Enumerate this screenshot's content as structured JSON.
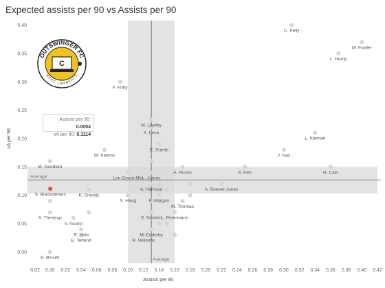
{
  "title": "Expected assists per 90 vs Assists per 90",
  "tooltip": {
    "ap_label": "Assists per 90:",
    "ap_value": "0.0004",
    "xa_label": "xA per 90:",
    "xa_value": "0.1114"
  },
  "logo": {
    "text": "OUTSWINGER FC",
    "subtext": "MARC LAMBERTS"
  },
  "colors": {
    "point": "#d5d5d5",
    "highlight": "#e0514a",
    "band": "#d9d9d9",
    "avg_line": "#555555"
  },
  "chart_data": {
    "type": "scatter",
    "title": "Expected assists per 90 vs Assists per 90",
    "xlabel": "Assists per 90",
    "ylabel": "xA per 90",
    "xlim": [
      -0.02,
      0.42
    ],
    "ylim": [
      -0.02,
      0.42
    ],
    "x_ticks": [
      "-0.02",
      "0.00",
      "0.02",
      "0.04",
      "0.06",
      "0.08",
      "0.10",
      "0.12",
      "0.14",
      "0.16",
      "0.18",
      "0.20",
      "0.22",
      "0.24",
      "0.26",
      "0.28",
      "0.30",
      "0.32",
      "0.34",
      "0.36",
      "0.38",
      "0.40",
      "0.42"
    ],
    "y_ticks": [
      "0.00",
      "0.05",
      "0.10",
      "0.15",
      "0.20",
      "0.25",
      "0.30",
      "0.35",
      "0.40"
    ],
    "grid": false,
    "average_label": "Average",
    "x_average": 0.13,
    "x_band": [
      0.1,
      0.16
    ],
    "y_average": 0.127,
    "y_band": [
      0.103,
      0.15
    ],
    "points": [
      {
        "name": "C. Kelly",
        "x": 0.31,
        "y": 0.4
      },
      {
        "name": "M. Fowler",
        "x": 0.4,
        "y": 0.37
      },
      {
        "name": "L. Hemp",
        "x": 0.37,
        "y": 0.35
      },
      {
        "name": "F. Kirby",
        "x": 0.09,
        "y": 0.3
      },
      {
        "name": "M. Lawley",
        "x": 0.13,
        "y": 0.233
      },
      {
        "name": "A. Leon",
        "x": 0.13,
        "y": 0.22
      },
      {
        "name": "L. Kiernan",
        "x": 0.34,
        "y": 0.21
      },
      {
        "name": "E. Snerle",
        "x": 0.14,
        "y": 0.19
      },
      {
        "name": "M. Kearns",
        "x": 0.07,
        "y": 0.18
      },
      {
        "name": "J. Naz",
        "x": 0.3,
        "y": 0.18
      },
      {
        "name": "M. Goodwin",
        "x": 0.0,
        "y": 0.16
      },
      {
        "name": "A. Russo",
        "x": 0.17,
        "y": 0.15
      },
      {
        "name": "S. Kerr",
        "x": 0.25,
        "y": 0.15
      },
      {
        "name": "H. Cain",
        "x": 0.36,
        "y": 0.15
      },
      {
        "name": "Lee Geum-Min",
        "x": 0.1,
        "y": 0.14
      },
      {
        "name": "L. James",
        "x": 0.13,
        "y": 0.14
      },
      {
        "name": "A. Harrison",
        "x": 0.13,
        "y": 0.12
      },
      {
        "name": "A. Beever-Jones",
        "x": 0.22,
        "y": 0.12
      },
      {
        "name": "S. Blackstenius",
        "x": 0.0004,
        "y": 0.1114,
        "highlight": true
      },
      {
        "name": "K. Snoeijs",
        "x": 0.05,
        "y": 0.11
      },
      {
        "name": "S. Haug",
        "x": 0.1,
        "y": 0.1
      },
      {
        "name": "F. Morgan",
        "x": 0.14,
        "y": 0.1
      },
      {
        "name": "M. Thomas",
        "x": 0.17,
        "y": 0.09
      },
      {
        "name": "A. Thestrup",
        "x": 0.0,
        "y": 0.07
      },
      {
        "name": "S. Nüsken",
        "x": 0.13,
        "y": 0.07
      },
      {
        "name": "L. Petermann",
        "x": 0.16,
        "y": 0.07
      },
      {
        "name": "V. Asseyi",
        "x": 0.03,
        "y": 0.06
      },
      {
        "name": "R. Ueki",
        "x": 0.04,
        "y": 0.04
      },
      {
        "name": "M. Enderby",
        "x": 0.13,
        "y": 0.04
      },
      {
        "name": "E. Terland",
        "x": 0.04,
        "y": 0.03
      },
      {
        "name": "R. Williams",
        "x": 0.12,
        "y": 0.03
      },
      {
        "name": "E. Bissell",
        "x": 0.0,
        "y": 0.0
      }
    ],
    "unlabeled_points": [
      {
        "x": 0.0,
        "y": 0.09
      },
      {
        "x": 0.05,
        "y": 0.07
      },
      {
        "x": 0.13,
        "y": 0.16
      },
      {
        "x": 0.14,
        "y": 0.12
      },
      {
        "x": 0.18,
        "y": 0.12
      },
      {
        "x": 0.15,
        "y": 0.11
      },
      {
        "x": 0.18,
        "y": 0.1
      },
      {
        "x": 0.13,
        "y": 0.09
      },
      {
        "x": 0.14,
        "y": 0.09
      },
      {
        "x": 0.15,
        "y": 0.05
      },
      {
        "x": 0.13,
        "y": 0.06
      },
      {
        "x": 0.12,
        "y": 0.11
      },
      {
        "x": 0.14,
        "y": 0.05
      },
      {
        "x": 0.16,
        "y": 0.03
      }
    ]
  }
}
